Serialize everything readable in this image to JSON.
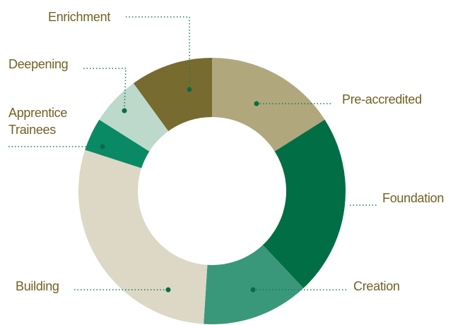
{
  "chart_data": {
    "type": "donut",
    "categories": [
      "Pre-accredited",
      "Foundation",
      "Creation",
      "Building",
      "Apprentice Trainees",
      "Deepening",
      "Enrichment"
    ],
    "values": [
      16,
      22,
      13,
      29,
      4,
      6,
      10
    ],
    "colors": [
      "#b0a77d",
      "#016e45",
      "#3a987a",
      "#dcd8c5",
      "#0a8a64",
      "#bcd9cb",
      "#786b2f"
    ]
  }
}
